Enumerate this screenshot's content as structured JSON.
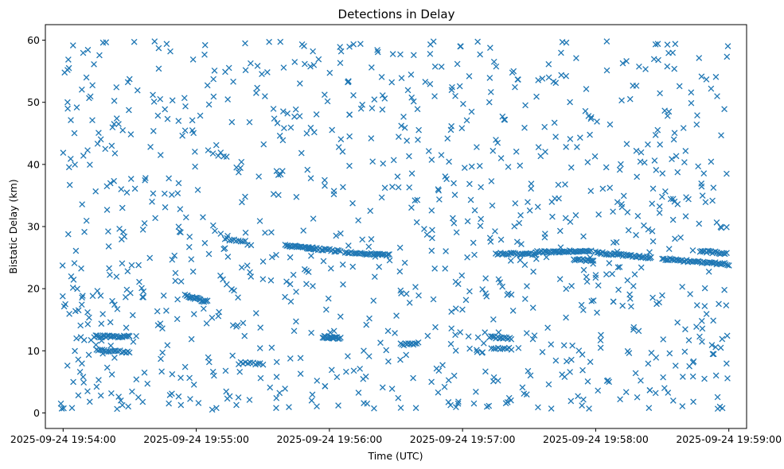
{
  "chart_data": {
    "type": "scatter",
    "title": "Detections in Delay",
    "xlabel": "Time (UTC)",
    "ylabel": "Bistatic Delay (km)",
    "marker": "x",
    "color": "#1f77b4",
    "grid": false,
    "xlim": [
      "2025-09-24 19:53:52",
      "2025-09-24 19:59:08"
    ],
    "ylim": [
      -2.5,
      62.5
    ],
    "x_ticks": [
      "2025-09-24 19:54:00",
      "2025-09-24 19:55:00",
      "2025-09-24 19:56:00",
      "2025-09-24 19:57:00",
      "2025-09-24 19:58:00",
      "2025-09-24 19:59:00"
    ],
    "y_ticks": [
      0,
      10,
      20,
      30,
      40,
      50,
      60
    ],
    "clusters": [
      {
        "x_start": "2025-09-24 19:54:14",
        "x_end": "2025-09-24 19:54:30",
        "y_start": 12.3,
        "y_end": 12.3,
        "count": 25
      },
      {
        "x_start": "2025-09-24 19:54:15",
        "x_end": "2025-09-24 19:54:30",
        "y_start": 10.1,
        "y_end": 9.8,
        "count": 18
      },
      {
        "x_start": "2025-09-24 19:54:55",
        "x_end": "2025-09-24 19:55:05",
        "y_start": 18.9,
        "y_end": 17.9,
        "count": 20
      },
      {
        "x_start": "2025-09-24 19:55:13",
        "x_end": "2025-09-24 19:55:22",
        "y_start": 28.0,
        "y_end": 27.6,
        "count": 10
      },
      {
        "x_start": "2025-09-24 19:55:20",
        "x_end": "2025-09-24 19:55:30",
        "y_start": 8.1,
        "y_end": 7.9,
        "count": 10
      },
      {
        "x_start": "2025-09-24 19:55:40",
        "x_end": "2025-09-24 19:55:53",
        "y_start": 26.9,
        "y_end": 26.5,
        "count": 22
      },
      {
        "x_start": "2025-09-24 19:55:50",
        "x_end": "2025-09-24 19:56:05",
        "y_start": 26.6,
        "y_end": 26.0,
        "count": 22
      },
      {
        "x_start": "2025-09-24 19:55:57",
        "x_end": "2025-09-24 19:56:05",
        "y_start": 12.2,
        "y_end": 12.0,
        "count": 16
      },
      {
        "x_start": "2025-09-24 19:56:07",
        "x_end": "2025-09-24 19:56:27",
        "y_start": 25.8,
        "y_end": 25.4,
        "count": 30
      },
      {
        "x_start": "2025-09-24 19:56:32",
        "x_end": "2025-09-24 19:56:40",
        "y_start": 11.0,
        "y_end": 11.2,
        "count": 12
      },
      {
        "x_start": "2025-09-24 19:57:12",
        "x_end": "2025-09-24 19:57:22",
        "y_start": 12.2,
        "y_end": 12.0,
        "count": 14
      },
      {
        "x_start": "2025-09-24 19:57:13",
        "x_end": "2025-09-24 19:57:22",
        "y_start": 10.4,
        "y_end": 10.3,
        "count": 10
      },
      {
        "x_start": "2025-09-24 19:57:15",
        "x_end": "2025-09-24 19:57:33",
        "y_start": 25.6,
        "y_end": 25.6,
        "count": 26
      },
      {
        "x_start": "2025-09-24 19:57:33",
        "x_end": "2025-09-24 19:57:58",
        "y_start": 25.9,
        "y_end": 26.1,
        "count": 40
      },
      {
        "x_start": "2025-09-24 19:57:50",
        "x_end": "2025-09-24 19:57:59",
        "y_start": 24.7,
        "y_end": 24.5,
        "count": 14
      },
      {
        "x_start": "2025-09-24 19:58:00",
        "x_end": "2025-09-24 19:58:25",
        "y_start": 25.8,
        "y_end": 25.0,
        "count": 40
      },
      {
        "x_start": "2025-09-24 19:58:30",
        "x_end": "2025-09-24 19:59:00",
        "y_start": 24.8,
        "y_end": 23.9,
        "count": 45
      },
      {
        "x_start": "2025-09-24 19:58:47",
        "x_end": "2025-09-24 19:58:59",
        "y_start": 26.1,
        "y_end": 25.6,
        "count": 18
      }
    ],
    "scattered_points": [
      [
        "2025-09-24 19:53:59",
        1.5
      ],
      [
        "2025-09-24 19:54:04",
        0.8
      ],
      [
        "2025-09-24 19:54:06",
        12.0
      ],
      [
        "2025-09-24 19:54:09",
        5.8
      ],
      [
        "2025-09-24 19:54:12",
        1.8
      ],
      [
        "2025-09-24 19:54:17",
        2.8
      ],
      [
        "2025-09-24 19:54:22",
        6.2
      ],
      [
        "2025-09-24 19:54:26",
        2.0
      ],
      [
        "2025-09-24 19:54:33",
        5.4
      ],
      [
        "2025-09-24 19:54:38",
        4.7
      ],
      [
        "2025-09-24 19:54:44",
        8.7
      ],
      [
        "2025-09-24 19:54:49",
        3.1
      ],
      [
        "2025-09-24 19:54:55",
        7.4
      ],
      [
        "2025-09-24 19:55:01",
        1.6
      ],
      [
        "2025-09-24 19:55:08",
        6.0
      ],
      [
        "2025-09-24 19:55:14",
        2.3
      ],
      [
        "2025-09-24 19:55:19",
        2.5
      ],
      [
        "2025-09-24 19:55:24",
        2.1
      ],
      [
        "2025-09-24 19:55:29",
        5.6
      ],
      [
        "2025-09-24 19:55:36",
        0.8
      ],
      [
        "2025-09-24 19:55:40",
        3.9
      ],
      [
        "2025-09-24 19:55:47",
        6.3
      ],
      [
        "2025-09-24 19:55:52",
        2.0
      ],
      [
        "2025-09-24 19:55:58",
        4.3
      ],
      [
        "2025-09-24 19:56:04",
        1.2
      ],
      [
        "2025-09-24 19:56:11",
        6.8
      ],
      [
        "2025-09-24 19:56:17",
        1.5
      ],
      [
        "2025-09-24 19:56:24",
        4.1
      ],
      [
        "2025-09-24 19:56:31",
        2.4
      ],
      [
        "2025-09-24 19:56:39",
        0.8
      ],
      [
        "2025-09-24 19:56:46",
        5.0
      ],
      [
        "2025-09-24 19:56:51",
        7.7
      ],
      [
        "2025-09-24 19:56:58",
        1.5
      ],
      [
        "2025-09-24 19:57:06",
        3.4
      ],
      [
        "2025-09-24 19:57:11",
        1.0
      ],
      [
        "2025-09-24 19:57:16",
        5.2
      ],
      [
        "2025-09-24 19:57:21",
        2.4
      ],
      [
        "2025-09-24 19:57:27",
        4.1
      ],
      [
        "2025-09-24 19:57:34",
        0.9
      ],
      [
        "2025-09-24 19:57:40",
        0.7
      ],
      [
        "2025-09-24 19:57:46",
        5.8
      ],
      [
        "2025-09-24 19:57:52",
        2.7
      ],
      [
        "2025-09-24 19:57:57",
        0.7
      ],
      [
        "2025-09-24 19:58:01",
        3.6
      ],
      [
        "2025-09-24 19:58:06",
        5.0
      ],
      [
        "2025-09-24 19:58:11",
        2.2
      ],
      [
        "2025-09-24 19:58:18",
        6.4
      ],
      [
        "2025-09-24 19:58:24",
        0.8
      ],
      [
        "2025-09-24 19:58:27",
        3.2
      ],
      [
        "2025-09-24 19:58:31",
        4.0
      ],
      [
        "2025-09-24 19:58:36",
        7.6
      ],
      [
        "2025-09-24 19:58:44",
        1.8
      ],
      [
        "2025-09-24 19:58:49",
        5.5
      ],
      [
        "2025-09-24 19:58:56",
        1.0
      ],
      [
        "2025-09-24 19:54:08",
        12.2
      ],
      [
        "2025-09-24 19:54:47",
        10.9
      ],
      [
        "2025-09-24 19:55:34",
        10.5
      ],
      [
        "2025-09-24 19:56:23",
        11.3
      ],
      [
        "2025-09-24 19:56:55",
        13.6
      ],
      [
        "2025-09-24 19:57:36",
        9.8
      ],
      [
        "2025-09-24 19:58:17",
        13.4
      ],
      [
        "2025-09-24 19:58:42",
        11.7
      ],
      [
        "2025-09-24 19:58:57",
        11.9
      ],
      [
        "2025-09-24 19:54:01",
        17.5
      ],
      [
        "2025-09-24 19:54:34",
        23.8
      ],
      [
        "2025-09-24 19:55:12",
        21.5
      ],
      [
        "2025-09-24 19:55:45",
        19.5
      ],
      [
        "2025-09-24 19:56:18",
        15.2
      ],
      [
        "2025-09-24 19:56:57",
        16.8
      ],
      [
        "2025-09-24 19:57:29",
        20.4
      ],
      [
        "2025-09-24 19:58:08",
        17.9
      ],
      [
        "2025-09-24 19:58:39",
        20.3
      ],
      [
        "2025-09-24 19:58:58",
        19.8
      ],
      [
        "2025-09-24 19:54:03",
        36.7
      ],
      [
        "2025-09-24 19:54:19",
        42.5
      ],
      [
        "2025-09-24 19:54:46",
        33.1
      ],
      [
        "2025-09-24 19:55:11",
        41.9
      ],
      [
        "2025-09-24 19:55:38",
        38.4
      ],
      [
        "2025-09-24 19:56:02",
        35.2
      ],
      [
        "2025-09-24 19:56:29",
        40.7
      ],
      [
        "2025-09-24 19:56:49",
        36.0
      ],
      [
        "2025-09-24 19:57:13",
        37.3
      ],
      [
        "2025-09-24 19:57:49",
        39.5
      ],
      [
        "2025-09-24 19:58:22",
        40.3
      ],
      [
        "2025-09-24 19:58:59",
        38.5
      ],
      [
        "2025-09-24 19:54:02",
        55.2
      ],
      [
        "2025-09-24 19:54:18",
        59.6
      ],
      [
        "2025-09-24 19:54:41",
        50.1
      ],
      [
        "2025-09-24 19:55:04",
        59.2
      ],
      [
        "2025-09-24 19:55:27",
        51.5
      ],
      [
        "2025-09-24 19:55:53",
        56.0
      ],
      [
        "2025-09-24 19:56:14",
        59.4
      ],
      [
        "2025-09-24 19:56:38",
        57.6
      ],
      [
        "2025-09-24 19:57:03",
        54.2
      ],
      [
        "2025-09-24 19:57:23",
        55.0
      ],
      [
        "2025-09-24 19:57:45",
        59.7
      ],
      [
        "2025-09-24 19:58:05",
        59.8
      ],
      [
        "2025-09-24 19:58:28",
        59.4
      ],
      [
        "2025-09-24 19:58:52",
        52.2
      ],
      [
        "2025-09-24 19:54:25",
        46.5
      ],
      [
        "2025-09-24 19:54:52",
        47.0
      ],
      [
        "2025-09-24 19:55:24",
        46.8
      ],
      [
        "2025-09-24 19:56:09",
        48.0
      ],
      [
        "2025-09-24 19:56:34",
        45.9
      ],
      [
        "2025-09-24 19:57:18",
        47.7
      ],
      [
        "2025-09-24 19:57:58",
        47.6
      ],
      [
        "2025-09-24 19:58:33",
        48.5
      ],
      [
        "2025-09-24 19:54:36",
        29.5
      ],
      [
        "2025-09-24 19:55:03",
        31.5
      ],
      [
        "2025-09-24 19:55:31",
        29.0
      ],
      [
        "2025-09-24 19:56:13",
        31.0
      ],
      [
        "2025-09-24 19:56:44",
        28.7
      ],
      [
        "2025-09-24 19:57:08",
        30.1
      ],
      [
        "2025-09-24 19:57:44",
        29.3
      ],
      [
        "2025-09-24 19:58:19",
        31.7
      ],
      [
        "2025-09-24 19:58:59",
        29.9
      ]
    ],
    "background_points": {
      "count": 920,
      "x_range": [
        "2025-09-24 19:53:59",
        "2025-09-24 19:59:00"
      ],
      "y_range": [
        0.5,
        59.8
      ]
    }
  }
}
